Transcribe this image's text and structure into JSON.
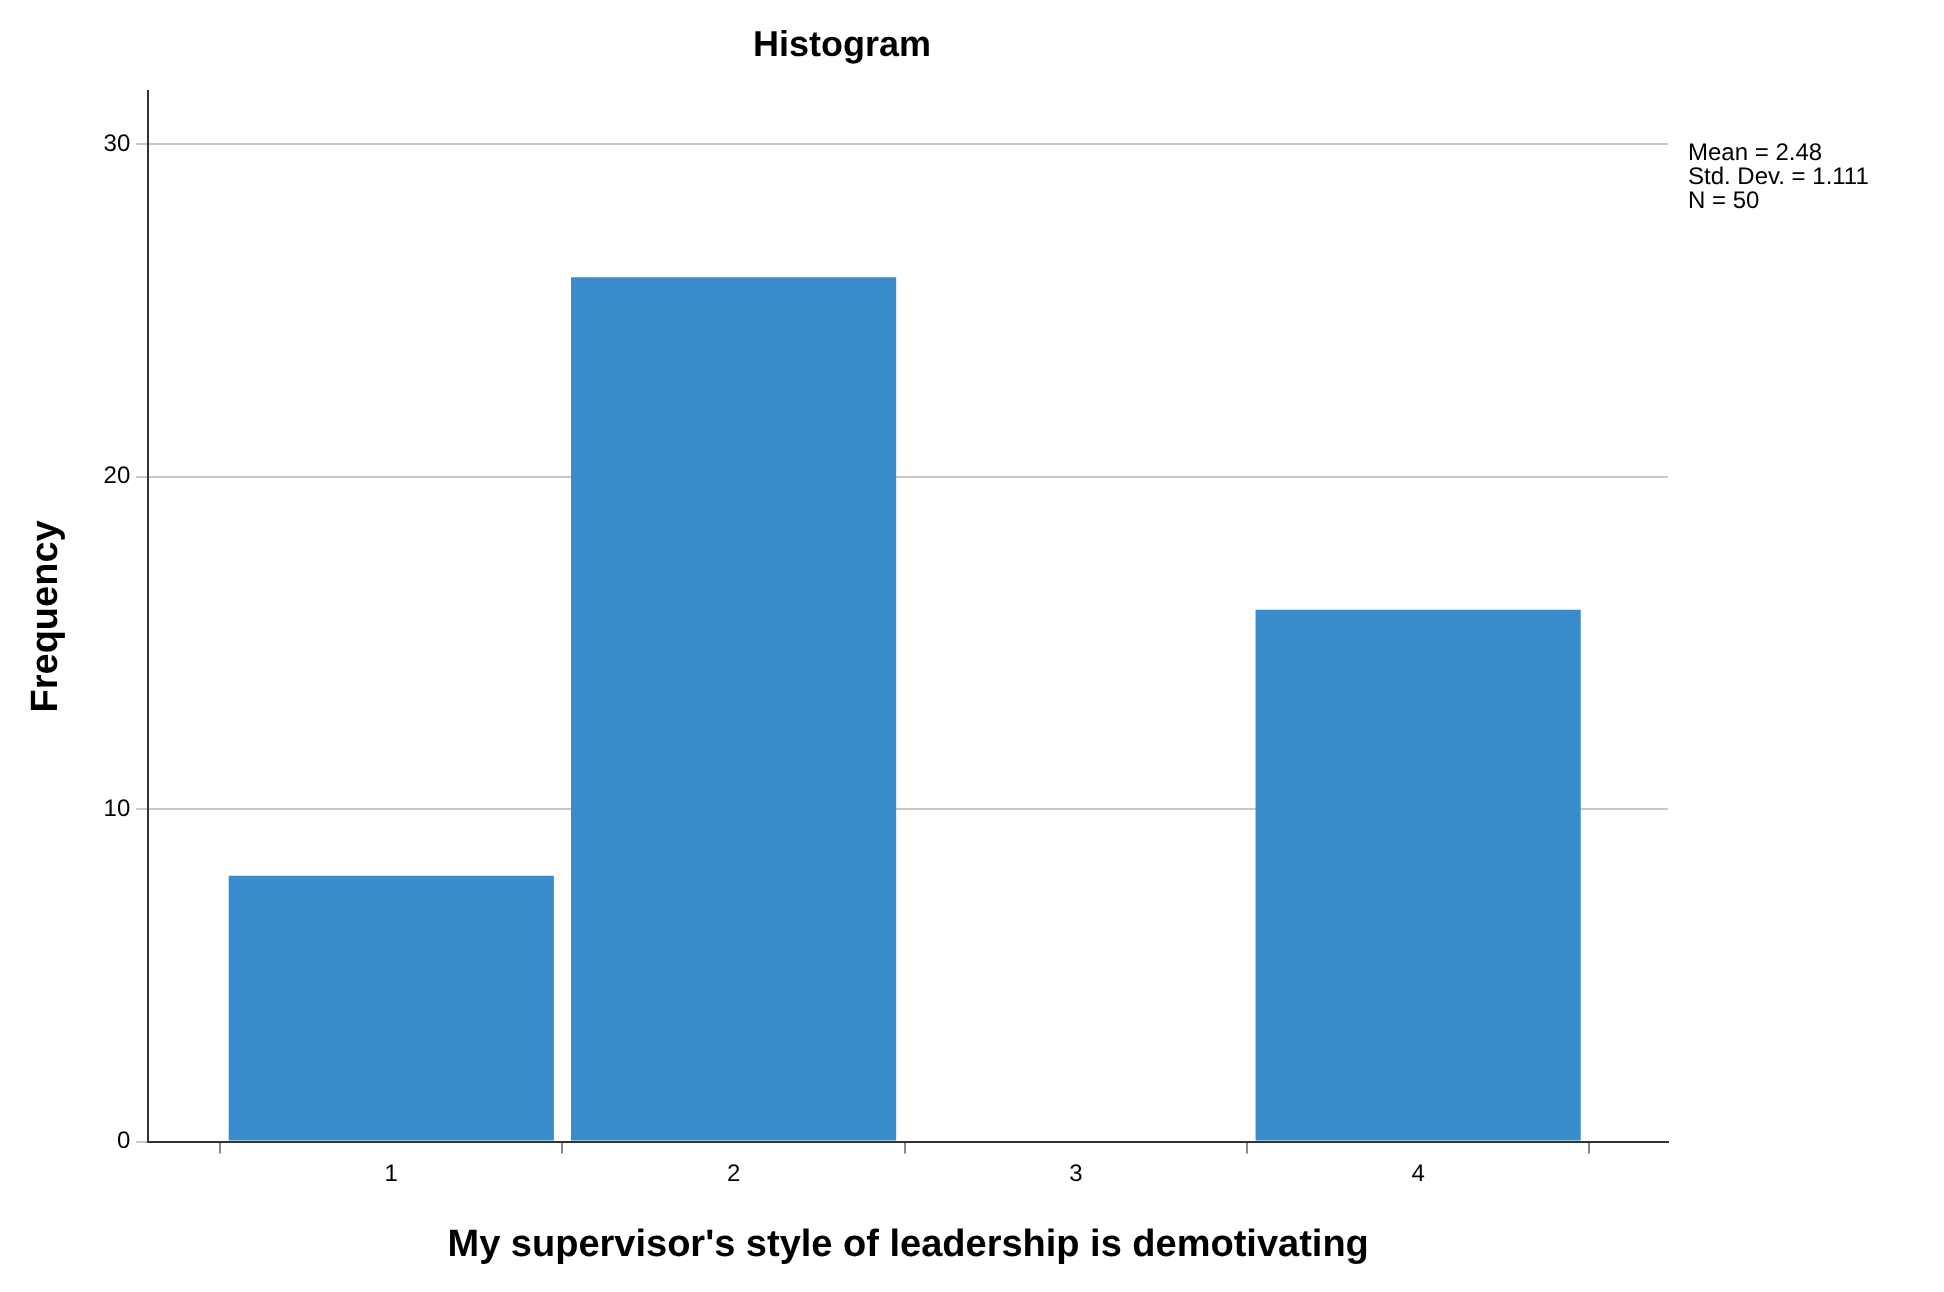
{
  "chart_data": {
    "type": "histogram",
    "title": "Histogram",
    "xlabel": "My supervisor's style of leadership is demotivating",
    "ylabel": "Frequency",
    "bins": [
      0.5,
      1.5,
      2.5,
      3.5,
      4.5
    ],
    "values": [
      8,
      26,
      0,
      16
    ],
    "color": "#388ccb",
    "xlim": [
      0.29,
      4.73
    ],
    "xticks": [
      1,
      2,
      3,
      4
    ],
    "ylim": [
      0,
      31.6
    ],
    "yticks": [
      0,
      10,
      20,
      30
    ],
    "grid": "y",
    "legend": false,
    "annotations": [
      "Mean = 2.48",
      "Std. Dev. = 1.111",
      "N = 50"
    ]
  }
}
